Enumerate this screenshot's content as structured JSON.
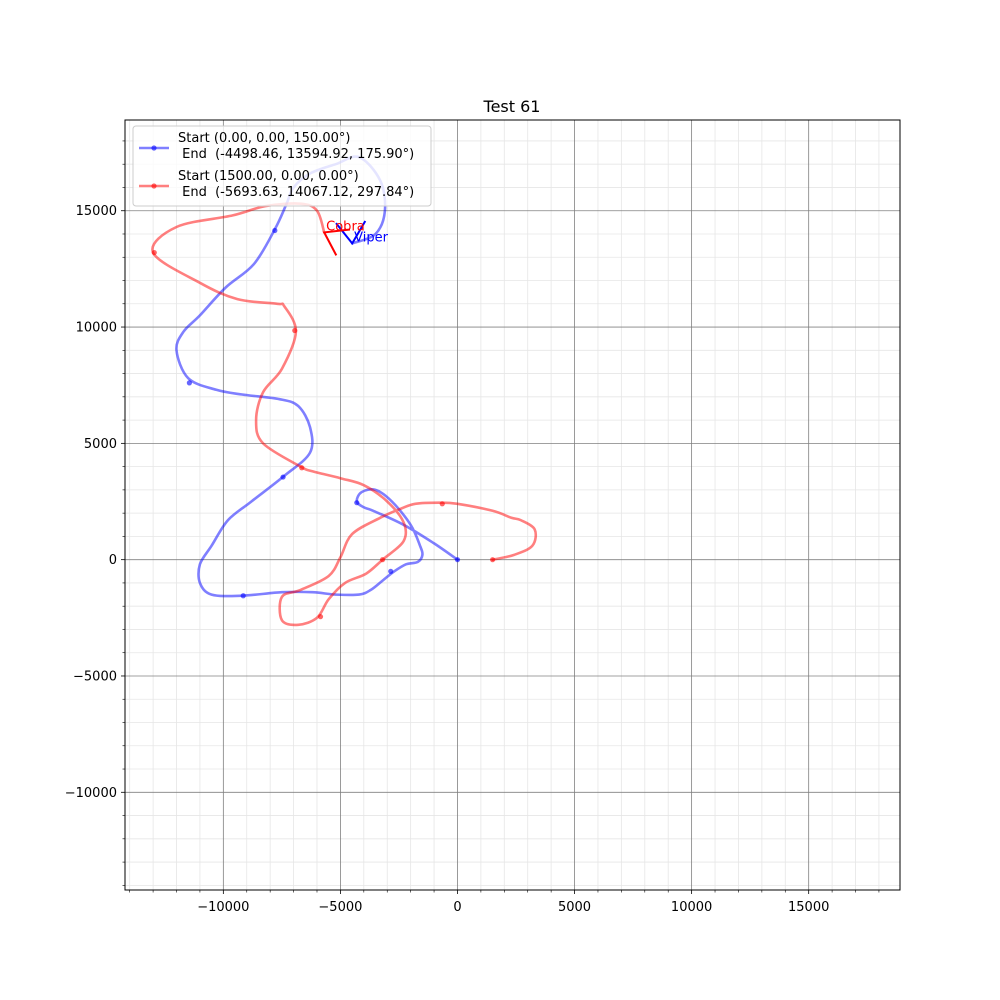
{
  "chart_data": {
    "type": "line",
    "title": "Test 61",
    "xlabel": "",
    "ylabel": "",
    "xlim": [
      -14200,
      18900
    ],
    "ylim": [
      -14200,
      18900
    ],
    "xticks": [
      -10000,
      -5000,
      0,
      5000,
      10000,
      15000
    ],
    "yticks": [
      -10000,
      -5000,
      0,
      5000,
      10000,
      15000
    ],
    "xtick_labels": [
      "−10000",
      "−5000",
      "0",
      "5000",
      "10000",
      "15000"
    ],
    "ytick_labels": [
      "−10000",
      "−5000",
      "0",
      "5000",
      "10000",
      "15000"
    ],
    "grid": true,
    "legend_position": "top-left",
    "series": [
      {
        "name": "Start (0.00, 0.00, 150.00°)\n End  (-4498.46, 13594.92, 175.90°)",
        "legend_lines": [
          "Start (0.00, 0.00, 150.00°)",
          " End  (-4498.46, 13594.92, 175.90°)"
        ],
        "color": "#0000ff",
        "label": "Viper",
        "path": [
          [
            0,
            0
          ],
          [
            -1000,
            700
          ],
          [
            -2300,
            1500
          ],
          [
            -3600,
            2100
          ],
          [
            -4000,
            2250
          ],
          [
            -4300,
            2500
          ],
          [
            -4100,
            2900
          ],
          [
            -3500,
            3000
          ],
          [
            -2800,
            2500
          ],
          [
            -2000,
            1500
          ],
          [
            -1600,
            600
          ],
          [
            -1500,
            200
          ],
          [
            -1700,
            -100
          ],
          [
            -2200,
            -200
          ],
          [
            -2700,
            -500
          ],
          [
            -3200,
            -900
          ],
          [
            -3700,
            -1300
          ],
          [
            -4200,
            -1500
          ],
          [
            -5200,
            -1500
          ],
          [
            -6200,
            -1400
          ],
          [
            -7500,
            -1400
          ],
          [
            -9200,
            -1550
          ],
          [
            -10500,
            -1500
          ],
          [
            -11000,
            -1000
          ],
          [
            -11000,
            -200
          ],
          [
            -10500,
            600
          ],
          [
            -9800,
            1700
          ],
          [
            -8800,
            2500
          ],
          [
            -7400,
            3600
          ],
          [
            -6300,
            4600
          ],
          [
            -6300,
            5700
          ],
          [
            -6800,
            6600
          ],
          [
            -7600,
            6900
          ],
          [
            -9200,
            7100
          ],
          [
            -10300,
            7300
          ],
          [
            -11500,
            7800
          ],
          [
            -12000,
            9000
          ],
          [
            -11700,
            9800
          ],
          [
            -11000,
            10500
          ],
          [
            -9900,
            11700
          ],
          [
            -8700,
            12700
          ],
          [
            -7800,
            14200
          ],
          [
            -7300,
            15300
          ],
          [
            -7000,
            16000
          ],
          [
            -6300,
            16600
          ],
          [
            -5200,
            17000
          ],
          [
            -4200,
            17300
          ],
          [
            -3300,
            16300
          ],
          [
            -3100,
            15000
          ],
          [
            -3500,
            14000
          ],
          [
            -4498.46,
            13594.92
          ]
        ],
        "markers": [
          [
            0,
            0
          ],
          [
            -2850,
            -500
          ],
          [
            -4300,
            2450
          ],
          [
            -7450,
            3550
          ],
          [
            -9150,
            -1550
          ],
          [
            -11450,
            7600
          ],
          [
            -7800,
            14150
          ]
        ],
        "end_heading_deg": 175.9
      },
      {
        "name": "Start (1500.00, 0.00, 0.00°)\n End  (-5693.63, 14067.12, 297.84°)",
        "legend_lines": [
          "Start (1500.00, 0.00, 0.00°)",
          " End  (-5693.63, 14067.12, 297.84°)"
        ],
        "color": "#ff0000",
        "label": "Cobra",
        "path": [
          [
            1500,
            0
          ],
          [
            2400,
            200
          ],
          [
            3200,
            600
          ],
          [
            3300,
            1300
          ],
          [
            2700,
            1700
          ],
          [
            2300,
            1800
          ],
          [
            1500,
            2100
          ],
          [
            0,
            2400
          ],
          [
            -800,
            2450
          ],
          [
            -1800,
            2400
          ],
          [
            -2400,
            2200
          ],
          [
            -3300,
            1800
          ],
          [
            -4500,
            1100
          ],
          [
            -5000,
            100
          ],
          [
            -5500,
            -700
          ],
          [
            -6700,
            -1300
          ],
          [
            -7500,
            -1600
          ],
          [
            -7500,
            -2600
          ],
          [
            -6800,
            -2800
          ],
          [
            -6000,
            -2500
          ],
          [
            -5500,
            -1700
          ],
          [
            -4800,
            -1000
          ],
          [
            -3900,
            -600
          ],
          [
            -3200,
            0
          ],
          [
            -2300,
            800
          ],
          [
            -2300,
            1600
          ],
          [
            -3000,
            2500
          ],
          [
            -4000,
            3200
          ],
          [
            -5000,
            3500
          ],
          [
            -6200,
            3800
          ],
          [
            -6700,
            4000
          ],
          [
            -8300,
            5000
          ],
          [
            -8600,
            6000
          ],
          [
            -8300,
            7200
          ],
          [
            -7500,
            8200
          ],
          [
            -6900,
            9800
          ],
          [
            -7400,
            10900
          ],
          [
            -7700,
            11000
          ],
          [
            -9400,
            11200
          ],
          [
            -11000,
            11900
          ],
          [
            -13000,
            13200
          ],
          [
            -12000,
            14300
          ],
          [
            -9600,
            14800
          ],
          [
            -8200,
            15200
          ],
          [
            -6700,
            15300
          ],
          [
            -6000,
            15000
          ],
          [
            -5693.63,
            14067.12
          ]
        ],
        "markers": [
          [
            1500,
            0
          ],
          [
            -650,
            2400
          ],
          [
            -3200,
            0
          ],
          [
            -5850,
            -2450
          ],
          [
            -6650,
            3950
          ],
          [
            -6950,
            9850
          ],
          [
            -12950,
            13200
          ]
        ],
        "end_heading_deg": 297.84
      }
    ]
  }
}
